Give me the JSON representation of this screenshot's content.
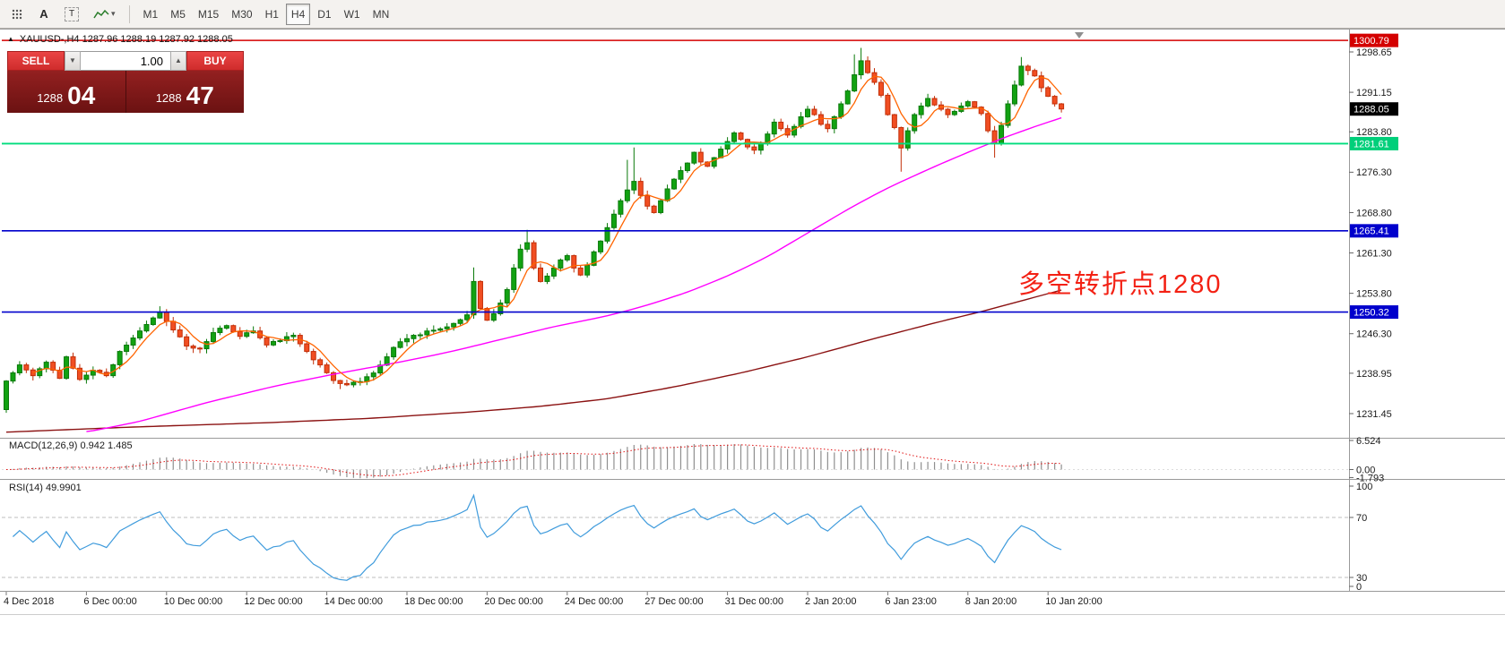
{
  "toolbar": {
    "tool_a": "A",
    "tool_t": "T",
    "timeframes": [
      "M1",
      "M5",
      "M15",
      "M30",
      "H1",
      "H4",
      "D1",
      "W1",
      "MN"
    ],
    "active_timeframe": "H4"
  },
  "trade_panel": {
    "sell_label": "SELL",
    "buy_label": "BUY",
    "volume": "1.00",
    "sell_big": "1288",
    "sell_frac": "04",
    "buy_big": "1288",
    "buy_frac": "47"
  },
  "chart": {
    "symbol_title": "XAUUSD-,H4 1287.96 1288.19 1287.92 1288.05",
    "annotation": {
      "text": "多空转折点1280",
      "color": "#f32114"
    },
    "y_axis_labels": [
      "1298.65",
      "1291.15",
      "1283.80",
      "1276.30",
      "1268.80",
      "1261.30",
      "1253.80",
      "1246.30",
      "1238.95",
      "1231.45"
    ],
    "x_axis_labels": [
      {
        "index": 0,
        "text": "4 Dec 2018"
      },
      {
        "index": 12,
        "text": "6 Dec 00:00"
      },
      {
        "index": 24,
        "text": "10 Dec 00:00"
      },
      {
        "index": 36,
        "text": "12 Dec 00:00"
      },
      {
        "index": 48,
        "text": "14 Dec 00:00"
      },
      {
        "index": 60,
        "text": "18 Dec 00:00"
      },
      {
        "index": 72,
        "text": "20 Dec 00:00"
      },
      {
        "index": 84,
        "text": "24 Dec 00:00"
      },
      {
        "index": 96,
        "text": "27 Dec 00:00"
      },
      {
        "index": 108,
        "text": "31 Dec 00:00"
      },
      {
        "index": 120,
        "text": "2 Jan 20:00"
      },
      {
        "index": 132,
        "text": "6 Jan 23:00"
      },
      {
        "index": 144,
        "text": "8 Jan 20:00"
      },
      {
        "index": 156,
        "text": "10 Jan 20:00"
      }
    ],
    "price_tags": [
      {
        "value": "1300.79",
        "price": 1300.79,
        "bg": "#d40000",
        "fg": "#ffffff"
      },
      {
        "value": "1288.05",
        "price": 1288.05,
        "bg": "#000000",
        "fg": "#ffffff"
      },
      {
        "value": "1281.61",
        "price": 1281.61,
        "bg": "#00cf7a",
        "fg": "#ffffff"
      },
      {
        "value": "1265.41",
        "price": 1265.41,
        "bg": "#0000cc",
        "fg": "#ffffff"
      },
      {
        "value": "1250.32",
        "price": 1250.32,
        "bg": "#0000cc",
        "fg": "#ffffff"
      }
    ]
  },
  "macd_panel": {
    "label": "MACD(12,26,9) 0.942 1.485",
    "axis": [
      "6.524",
      "0.00",
      "-1.793"
    ]
  },
  "rsi_panel": {
    "label": "RSI(14) 49.9901",
    "axis": [
      "100",
      "70",
      "30",
      "0"
    ]
  },
  "chart_data": {
    "type": "candlestick",
    "symbol": "XAUUSD",
    "timeframe": "H4",
    "ohlc_now": {
      "open": 1287.96,
      "high": 1288.19,
      "low": 1287.92,
      "close": 1288.05
    },
    "bid": 1288.04,
    "ask": 1288.47,
    "current_price": 1288.05,
    "bars": 159,
    "colors": {
      "up": "#12a212",
      "up_stroke": "#0a7a0a",
      "down": "#f14e22",
      "down_stroke": "#c22f08",
      "ma_fast": "#ff6400",
      "ma_mid": "#ff00ff",
      "ma_slow": "#8b1212"
    },
    "hlines": [
      {
        "price": 1300.79,
        "color": "#d40000",
        "width": 1.6
      },
      {
        "price": 1281.61,
        "color": "#00dd7d",
        "width": 1.8
      },
      {
        "price": 1265.41,
        "color": "#0000cc",
        "width": 1.6
      },
      {
        "price": 1250.32,
        "color": "#0000cc",
        "width": 1.6
      }
    ],
    "close_anchors": [
      [
        0,
        1237.5
      ],
      [
        2,
        1240.5
      ],
      [
        4,
        1238.5
      ],
      [
        6,
        1241.0
      ],
      [
        8,
        1238.0
      ],
      [
        9,
        1242.0
      ],
      [
        11,
        1237.8
      ],
      [
        13,
        1239.5
      ],
      [
        15,
        1238.5
      ],
      [
        17,
        1243.0
      ],
      [
        19,
        1245.5
      ],
      [
        21,
        1248.0
      ],
      [
        23,
        1250.3
      ],
      [
        25,
        1247.0
      ],
      [
        27,
        1244.0
      ],
      [
        29,
        1243.5
      ],
      [
        31,
        1246.5
      ],
      [
        33,
        1247.8
      ],
      [
        35,
        1245.8
      ],
      [
        37,
        1246.8
      ],
      [
        39,
        1244.2
      ],
      [
        41,
        1245.0
      ],
      [
        43,
        1246.0
      ],
      [
        45,
        1243.0
      ],
      [
        47,
        1240.5
      ],
      [
        49,
        1237.6
      ],
      [
        51,
        1236.8
      ],
      [
        53,
        1237.4
      ],
      [
        55,
        1239.0
      ],
      [
        57,
        1242.0
      ],
      [
        59,
        1244.8
      ],
      [
        61,
        1246.0
      ],
      [
        63,
        1246.8
      ],
      [
        65,
        1247.2
      ],
      [
        67,
        1248.2
      ],
      [
        69,
        1249.8
      ],
      [
        70,
        1256.0
      ],
      [
        71,
        1251.0
      ],
      [
        72,
        1248.8
      ],
      [
        73,
        1250.0
      ],
      [
        74,
        1252.0
      ],
      [
        75,
        1254.5
      ],
      [
        76,
        1258.5
      ],
      [
        77,
        1262.0
      ],
      [
        78,
        1263.2
      ],
      [
        79,
        1258.5
      ],
      [
        80,
        1256.0
      ],
      [
        81,
        1257.0
      ],
      [
        82,
        1258.5
      ],
      [
        83,
        1260.0
      ],
      [
        84,
        1260.8
      ],
      [
        85,
        1258.5
      ],
      [
        86,
        1257.2
      ],
      [
        87,
        1259.0
      ],
      [
        88,
        1261.5
      ],
      [
        89,
        1263.5
      ],
      [
        90,
        1266.0
      ],
      [
        91,
        1268.5
      ],
      [
        92,
        1271.0
      ],
      [
        93,
        1273.0
      ],
      [
        94,
        1274.6
      ],
      [
        95,
        1272.0
      ],
      [
        96,
        1270.0
      ],
      [
        97,
        1268.8
      ],
      [
        98,
        1271.0
      ],
      [
        99,
        1273.2
      ],
      [
        100,
        1275.0
      ],
      [
        101,
        1276.6
      ],
      [
        102,
        1278.0
      ],
      [
        103,
        1280.0
      ],
      [
        104,
        1278.2
      ],
      [
        105,
        1277.4
      ],
      [
        106,
        1279.0
      ],
      [
        107,
        1280.6
      ],
      [
        108,
        1282.0
      ],
      [
        109,
        1283.6
      ],
      [
        110,
        1282.4
      ],
      [
        111,
        1281.0
      ],
      [
        112,
        1280.4
      ],
      [
        113,
        1281.6
      ],
      [
        114,
        1283.4
      ],
      [
        115,
        1285.6
      ],
      [
        116,
        1284.4
      ],
      [
        117,
        1283.2
      ],
      [
        118,
        1284.8
      ],
      [
        119,
        1286.6
      ],
      [
        120,
        1288.0
      ],
      [
        121,
        1287.0
      ],
      [
        122,
        1285.2
      ],
      [
        123,
        1284.4
      ],
      [
        124,
        1286.6
      ],
      [
        125,
        1289.0
      ],
      [
        126,
        1291.4
      ],
      [
        127,
        1294.4
      ],
      [
        128,
        1297.0
      ],
      [
        129,
        1294.8
      ],
      [
        130,
        1293.0
      ],
      [
        131,
        1290.6
      ],
      [
        132,
        1287.0
      ],
      [
        133,
        1284.6
      ],
      [
        134,
        1280.8
      ],
      [
        135,
        1284.0
      ],
      [
        136,
        1287.0
      ],
      [
        137,
        1288.6
      ],
      [
        138,
        1290.0
      ],
      [
        139,
        1288.8
      ],
      [
        140,
        1288.0
      ],
      [
        141,
        1287.0
      ],
      [
        142,
        1287.6
      ],
      [
        143,
        1288.6
      ],
      [
        144,
        1289.4
      ],
      [
        145,
        1288.4
      ],
      [
        146,
        1287.2
      ],
      [
        147,
        1284.0
      ],
      [
        148,
        1281.6
      ],
      [
        149,
        1285.0
      ],
      [
        150,
        1289.0
      ],
      [
        151,
        1292.5
      ],
      [
        152,
        1296.0
      ],
      [
        153,
        1295.2
      ],
      [
        154,
        1294.2
      ],
      [
        155,
        1292.0
      ],
      [
        156,
        1290.4
      ],
      [
        157,
        1289.0
      ],
      [
        158,
        1288.05
      ]
    ],
    "wick_overrides": {
      "0": {
        "low": 1231.6
      },
      "23": {
        "high": 1251.4
      },
      "50": {
        "low": 1236
      },
      "70": {
        "high": 1258.6
      },
      "78": {
        "high": 1265.6
      },
      "93": {
        "high": 1278.6
      },
      "94": {
        "high": 1280.9
      },
      "127": {
        "high": 1298.2
      },
      "128": {
        "high": 1299.4
      },
      "134": {
        "low": 1276.4
      },
      "148": {
        "low": 1279
      },
      "152": {
        "high": 1297.7
      }
    },
    "ma_mid_anchors": [
      [
        12,
        1228.0
      ],
      [
        20,
        1230.0
      ],
      [
        30,
        1233.5
      ],
      [
        40,
        1236.5
      ],
      [
        50,
        1239.0
      ],
      [
        58,
        1240.8
      ],
      [
        66,
        1242.8
      ],
      [
        74,
        1245.2
      ],
      [
        82,
        1247.6
      ],
      [
        90,
        1249.6
      ],
      [
        96,
        1251.6
      ],
      [
        102,
        1254.0
      ],
      [
        108,
        1257.0
      ],
      [
        114,
        1260.6
      ],
      [
        120,
        1265.0
      ],
      [
        126,
        1269.4
      ],
      [
        132,
        1273.4
      ],
      [
        138,
        1276.8
      ],
      [
        144,
        1280.0
      ],
      [
        150,
        1283.0
      ],
      [
        155,
        1285.2
      ],
      [
        158,
        1286.4
      ]
    ],
    "ma_slow_anchors": [
      [
        0,
        1228.0
      ],
      [
        20,
        1229.0
      ],
      [
        40,
        1229.8
      ],
      [
        55,
        1230.6
      ],
      [
        70,
        1231.8
      ],
      [
        80,
        1232.8
      ],
      [
        90,
        1234.2
      ],
      [
        100,
        1236.4
      ],
      [
        110,
        1239.0
      ],
      [
        120,
        1242.0
      ],
      [
        130,
        1245.4
      ],
      [
        140,
        1248.6
      ],
      [
        146,
        1250.4
      ],
      [
        152,
        1252.4
      ],
      [
        158,
        1254.4
      ]
    ],
    "macd": {
      "fast": 12,
      "slow": 26,
      "signal": 9,
      "value": 0.942,
      "signal_value": 1.485,
      "scale_max": 6.524,
      "scale_min": -1.793
    },
    "rsi": {
      "period": 14,
      "value": 49.9901,
      "levels": [
        70,
        30
      ]
    }
  }
}
